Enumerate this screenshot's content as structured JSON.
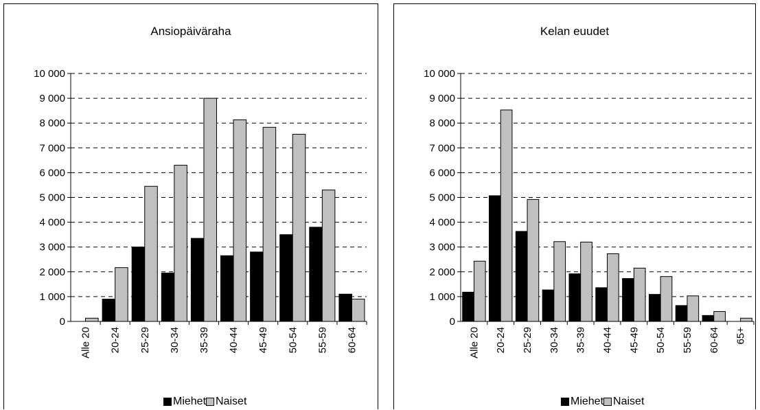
{
  "chart_data": [
    {
      "type": "bar",
      "title": "Ansiopäiväraha",
      "categories": [
        "Alle 20",
        "20-24",
        "25-29",
        "30-34",
        "35-39",
        "40-44",
        "45-49",
        "50-54",
        "55-59",
        "60-64"
      ],
      "series": [
        {
          "name": "Miehet",
          "color": "#000000",
          "values": [
            0,
            900,
            3000,
            1950,
            3350,
            2650,
            2800,
            3500,
            3800,
            1100
          ]
        },
        {
          "name": "Naiset",
          "color": "#c0c0c0",
          "values": [
            130,
            2170,
            5450,
            6300,
            9000,
            8130,
            7830,
            7550,
            5300,
            900
          ]
        }
      ],
      "ylim": [
        0,
        10000
      ],
      "yticks": [
        "0",
        "1 000",
        "2 000",
        "3 000",
        "4 000",
        "5 000",
        "6 000",
        "7 000",
        "8 000",
        "9 000",
        "10 000"
      ],
      "grid": "dashed-horizontal",
      "legend_position": "bottom"
    },
    {
      "type": "bar",
      "title": "Kelan euudet",
      "categories": [
        "Alle 20",
        "20-24",
        "25-29",
        "30-34",
        "35-39",
        "40-44",
        "45-49",
        "50-54",
        "55-59",
        "60-64",
        "65+"
      ],
      "series": [
        {
          "name": "Miehet",
          "color": "#000000",
          "values": [
            1180,
            5070,
            3630,
            1270,
            1920,
            1360,
            1730,
            1090,
            640,
            240,
            0
          ]
        },
        {
          "name": "Naiset",
          "color": "#c0c0c0",
          "values": [
            2430,
            8530,
            4920,
            3220,
            3200,
            2730,
            2150,
            1810,
            1030,
            400,
            130
          ]
        }
      ],
      "ylim": [
        0,
        10000
      ],
      "yticks": [
        "0",
        "1 000",
        "2 000",
        "3 000",
        "4 000",
        "5 000",
        "6 000",
        "7 000",
        "8 000",
        "9 000",
        "10 000"
      ],
      "grid": "dashed-horizontal",
      "legend_position": "bottom"
    }
  ]
}
